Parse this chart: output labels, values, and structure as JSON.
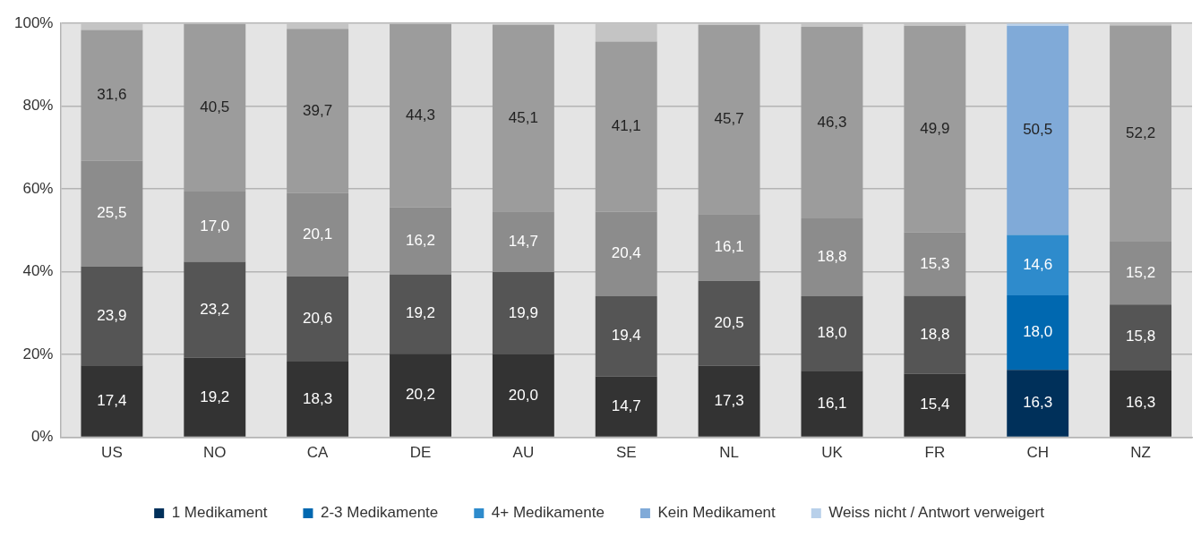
{
  "chart_data": {
    "type": "bar",
    "stacked": true,
    "categories": [
      "US",
      "NO",
      "CA",
      "DE",
      "AU",
      "SE",
      "NL",
      "UK",
      "FR",
      "CH",
      "NZ"
    ],
    "ylim": [
      0,
      100
    ],
    "yticks": [
      {
        "value": 0,
        "label": "0%"
      },
      {
        "value": 20,
        "label": "20%"
      },
      {
        "value": 40,
        "label": "40%"
      },
      {
        "value": 60,
        "label": "60%"
      },
      {
        "value": 80,
        "label": "80%"
      },
      {
        "value": 100,
        "label": "100%"
      }
    ],
    "grid": "y",
    "legend": "bottom",
    "series": [
      {
        "name": "1 Medikament",
        "color": "#00305a",
        "colors": [
          "#333333",
          "#333333",
          "#333333",
          "#333333",
          "#333333",
          "#333333",
          "#333333",
          "#333333",
          "#333333",
          "#00305a",
          "#333333"
        ],
        "values": [
          17.4,
          19.2,
          18.3,
          20.2,
          20.0,
          14.7,
          17.3,
          16.1,
          15.4,
          16.3,
          16.3
        ],
        "value_labels": [
          "17,4",
          "19,2",
          "18,3",
          "20,2",
          "20,0",
          "14,7",
          "17,3",
          "16,1",
          "15,4",
          "16,3",
          "16,3"
        ]
      },
      {
        "name": "2-3 Medikamente",
        "color": "#0068b0",
        "colors": [
          "#555555",
          "#555555",
          "#555555",
          "#555555",
          "#555555",
          "#555555",
          "#555555",
          "#555555",
          "#555555",
          "#0068b0",
          "#555555"
        ],
        "values": [
          23.9,
          23.2,
          20.6,
          19.2,
          19.9,
          19.4,
          20.5,
          18.0,
          18.8,
          18.0,
          15.8
        ],
        "value_labels": [
          "23,9",
          "23,2",
          "20,6",
          "19,2",
          "19,9",
          "19,4",
          "20,5",
          "18,0",
          "18,8",
          "18,0",
          "15,8"
        ]
      },
      {
        "name": "4+ Medikamente",
        "color": "#2e8bcc",
        "colors": [
          "#8c8c8c",
          "#8c8c8c",
          "#8c8c8c",
          "#8c8c8c",
          "#8c8c8c",
          "#8c8c8c",
          "#8c8c8c",
          "#8c8c8c",
          "#8c8c8c",
          "#2e8bcc",
          "#8c8c8c"
        ],
        "values": [
          25.5,
          17.0,
          20.1,
          16.2,
          14.7,
          20.4,
          16.1,
          18.8,
          15.3,
          14.6,
          15.2
        ],
        "value_labels": [
          "25,5",
          "17,0",
          "20,1",
          "16,2",
          "14,7",
          "20,4",
          "16,1",
          "18,8",
          "15,3",
          "14,6",
          "15,2"
        ]
      },
      {
        "name": "Kein Medikament",
        "color": "#80aad8",
        "colors": [
          "#9c9c9c",
          "#9c9c9c",
          "#9c9c9c",
          "#9c9c9c",
          "#9c9c9c",
          "#9c9c9c",
          "#9c9c9c",
          "#9c9c9c",
          "#9c9c9c",
          "#80aad8",
          "#9c9c9c"
        ],
        "values": [
          31.6,
          40.5,
          39.7,
          44.3,
          45.1,
          41.1,
          45.7,
          46.3,
          49.9,
          50.5,
          52.2
        ],
        "value_labels": [
          "31,6",
          "40,5",
          "39,7",
          "44,3",
          "45,1",
          "41,1",
          "45,7",
          "46,3",
          "49,9",
          "50,5",
          "52,2"
        ]
      },
      {
        "name": "Weiss nicht / Antwort verweigert",
        "color": "#b8d0ea",
        "colors": [
          "#c4c4c4",
          "#c4c4c4",
          "#c4c4c4",
          "#c4c4c4",
          "#c4c4c4",
          "#c4c4c4",
          "#c4c4c4",
          "#c4c4c4",
          "#c4c4c4",
          "#b8d0ea",
          "#c4c4c4"
        ],
        "values": [
          1.6,
          0.1,
          1.3,
          0.1,
          null,
          4.4,
          0.4,
          0.8,
          0.6,
          0.6,
          0.5
        ]
      }
    ]
  }
}
